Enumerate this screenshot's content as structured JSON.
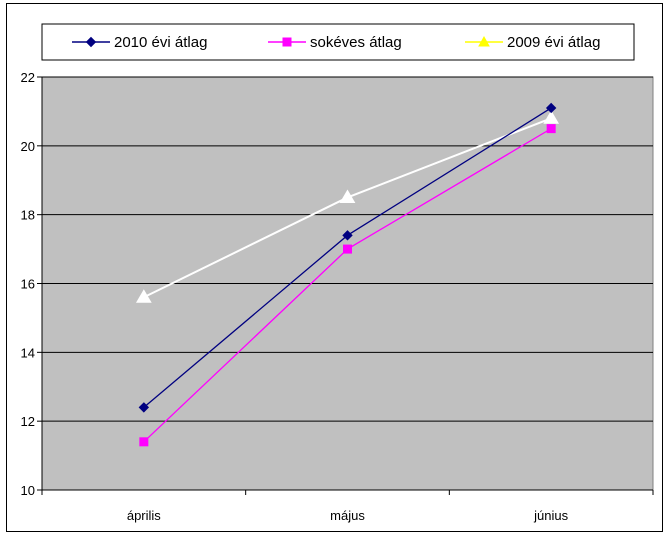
{
  "chart_data": {
    "type": "line",
    "title": "",
    "xlabel": "",
    "ylabel": "",
    "categories": [
      "április",
      "május",
      "június"
    ],
    "ylim": [
      10,
      22
    ],
    "yticks": [
      10,
      12,
      14,
      16,
      18,
      20,
      22
    ],
    "grid": "horizontal",
    "legend_position": "top",
    "plot_background": "#c0c0c0",
    "series": [
      {
        "name": "2010 évi átlag",
        "values": [
          12.4,
          17.4,
          21.1
        ],
        "color": "#000080",
        "marker": "diamond"
      },
      {
        "name": "sokéves átlag",
        "values": [
          11.4,
          17.0,
          20.5
        ],
        "color": "#ff00ff",
        "marker": "square"
      },
      {
        "name": "2009 évi átlag",
        "values": [
          15.6,
          18.5,
          20.8
        ],
        "color": "#ffff00",
        "line_color": "#ffffff",
        "marker": "triangle"
      }
    ]
  }
}
